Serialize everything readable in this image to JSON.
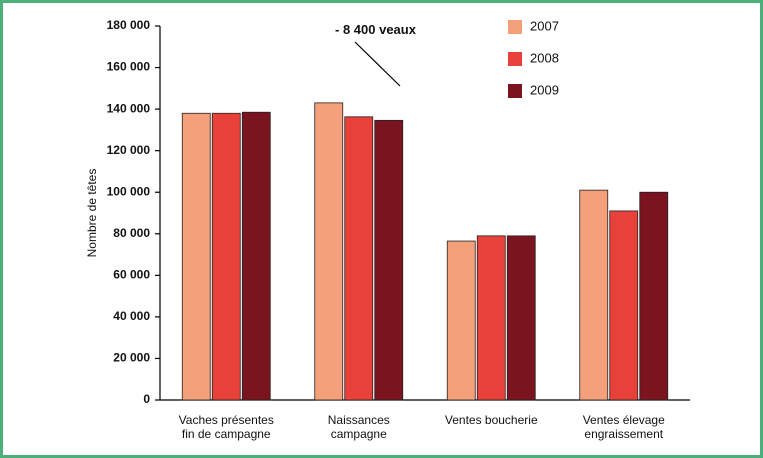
{
  "chart_data": {
    "type": "bar",
    "y_label": "Nombre de têtes",
    "annotation": "- 8 400 veaux",
    "categories": [
      "Vaches présentes\nfin de campagne",
      "Naissances\ncampagne",
      "Ventes boucherie",
      "Ventes élevage\nengraissement"
    ],
    "series": [
      {
        "name": "2007",
        "color": "#f4a07a",
        "values": [
          138000,
          143000,
          76500,
          101000
        ]
      },
      {
        "name": "2008",
        "color": "#e8413a",
        "values": [
          138000,
          136300,
          79000,
          91000
        ]
      },
      {
        "name": "2009",
        "color": "#7a1520",
        "values": [
          138500,
          134600,
          79000,
          100000
        ]
      }
    ],
    "ylim": [
      0,
      180000
    ],
    "yticks": [
      0,
      {
        "value": 20000,
        "label": "20 000"
      },
      {
        "value": 40000,
        "label": "40 000"
      },
      {
        "value": 60000,
        "label": "60 000"
      },
      {
        "value": 80000,
        "label": "80 000"
      },
      {
        "value": 100000,
        "label": "100 000"
      },
      {
        "value": 120000,
        "label": "120 000"
      },
      {
        "value": 140000,
        "label": "140 000"
      },
      {
        "value": 160000,
        "label": "160 000"
      },
      {
        "value": 180000,
        "label": "180 000"
      }
    ],
    "legend": "upper right",
    "grid": false
  }
}
